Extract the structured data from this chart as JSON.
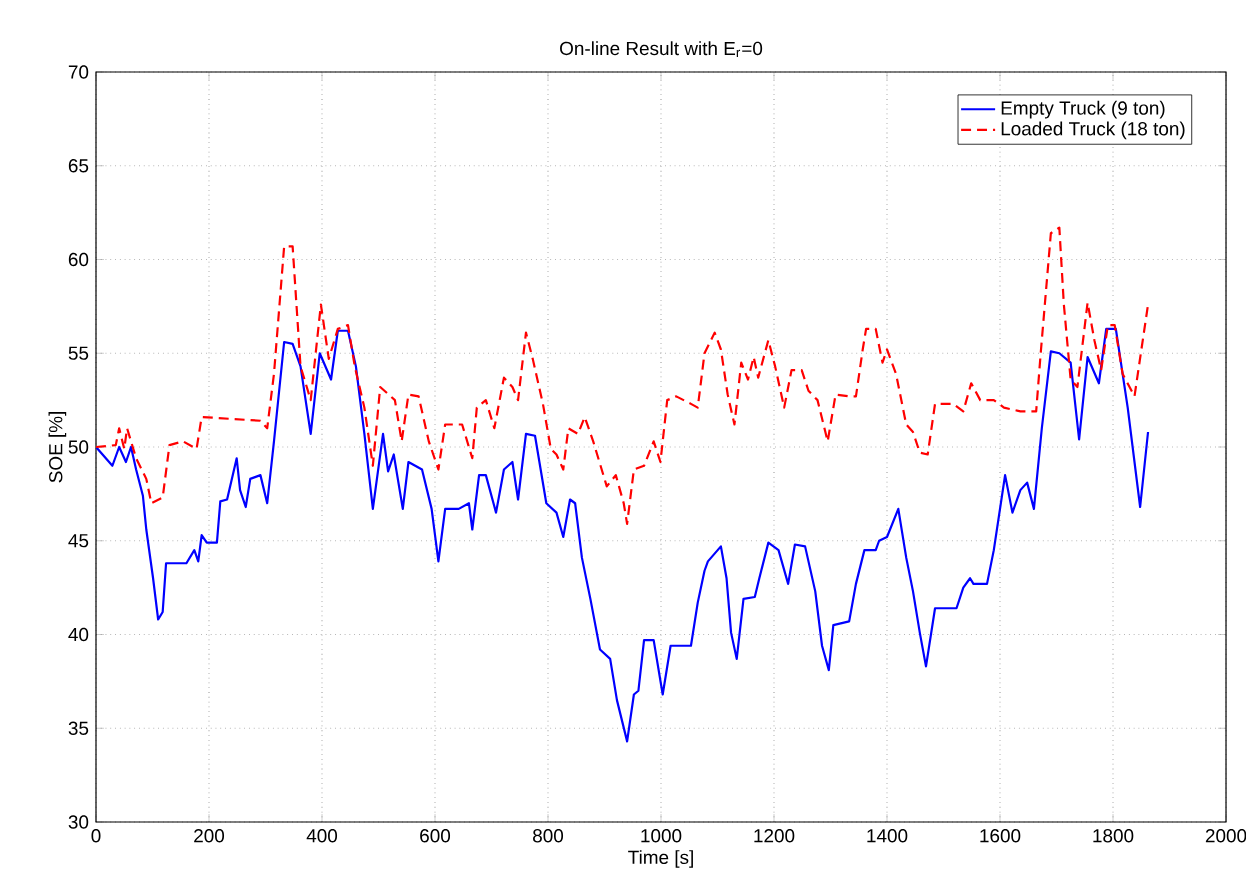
{
  "chart_data": {
    "type": "line",
    "title": "On-line Result with E$_{r}$=0",
    "xlabel": "Time [s]",
    "ylabel": "SOE [%]",
    "xlim": [
      0,
      2000
    ],
    "ylim": [
      30,
      70
    ],
    "xticks": [
      0,
      200,
      400,
      600,
      800,
      1000,
      1200,
      1400,
      1600,
      1800,
      2000
    ],
    "yticks": [
      30,
      35,
      40,
      45,
      50,
      55,
      60,
      65,
      70
    ],
    "grid": true,
    "legend": "top right",
    "series": [
      {
        "name": "Empty Truck (9 ton)",
        "color": "#0000ff",
        "line_style": "solid",
        "x": [
          0,
          29,
          41,
          53,
          62,
          71,
          83,
          89,
          101,
          110,
          118,
          124,
          160,
          174,
          181,
          187,
          196,
          214,
          220,
          232,
          249,
          255,
          265,
          273,
          291,
          303,
          315,
          333,
          348,
          362,
          380,
          396,
          416,
          428,
          446,
          460,
          475,
          490,
          508,
          517,
          527,
          543,
          553,
          577,
          594,
          606,
          618,
          642,
          660,
          666,
          678,
          690,
          708,
          722,
          737,
          747,
          761,
          777,
          797,
          815,
          827,
          839,
          848,
          860,
          875,
          892,
          910,
          922,
          940,
          952,
          960,
          970,
          987,
          1003,
          1017,
          1053,
          1065,
          1077,
          1083,
          1106,
          1116,
          1124,
          1134,
          1146,
          1166,
          1174,
          1190,
          1208,
          1225,
          1237,
          1255,
          1273,
          1285,
          1297,
          1305,
          1333,
          1345,
          1360,
          1380,
          1386,
          1400,
          1420,
          1434,
          1446,
          1458,
          1469,
          1485,
          1523,
          1535,
          1547,
          1553,
          1577,
          1589,
          1609,
          1622,
          1636,
          1648,
          1660,
          1674,
          1690,
          1705,
          1725,
          1740,
          1755,
          1775,
          1788,
          1805,
          1826,
          1848,
          1862
        ],
        "values": [
          50,
          49,
          50,
          49.2,
          50,
          48.8,
          47.4,
          45.6,
          43,
          40.8,
          41.2,
          43.8,
          43.8,
          44.5,
          43.9,
          45.3,
          44.9,
          44.9,
          47.1,
          47.2,
          49.4,
          47.7,
          46.8,
          48.3,
          48.5,
          47,
          50.3,
          55.6,
          55.5,
          54.3,
          50.7,
          55,
          53.6,
          56.2,
          56.2,
          54.3,
          50.7,
          46.7,
          50.7,
          48.7,
          49.6,
          46.7,
          49.2,
          48.8,
          46.7,
          43.9,
          46.7,
          46.7,
          47,
          45.6,
          48.5,
          48.5,
          46.5,
          48.8,
          49.2,
          47.2,
          50.7,
          50.6,
          47,
          46.5,
          45.2,
          47.2,
          47,
          44.1,
          41.9,
          39.2,
          38.7,
          36.5,
          34.3,
          36.8,
          37,
          39.7,
          39.7,
          36.8,
          39.4,
          39.4,
          41.7,
          43.4,
          43.9,
          44.7,
          43,
          40.1,
          38.7,
          41.9,
          42,
          43,
          44.9,
          44.5,
          42.7,
          44.8,
          44.7,
          42.3,
          39.4,
          38.1,
          40.5,
          40.7,
          42.7,
          44.5,
          44.5,
          45,
          45.2,
          46.7,
          44.1,
          42.3,
          40.1,
          38.3,
          41.4,
          41.4,
          42.5,
          43,
          42.7,
          42.7,
          44.5,
          48.5,
          46.5,
          47.7,
          48.1,
          46.7,
          51,
          55.1,
          55,
          54.5,
          50.4,
          54.8,
          53.4,
          56.3,
          56.3,
          52.1,
          46.8,
          50.8
        ]
      },
      {
        "name": "Loaded Truck (18 ton)",
        "color": "#ff0000",
        "line_style": "dashed",
        "x": [
          0,
          35,
          41,
          50,
          55,
          71,
          89,
          98,
          118,
          130,
          154,
          178,
          187,
          291,
          303,
          315,
          333,
          348,
          362,
          380,
          398,
          412,
          428,
          446,
          458,
          475,
          490,
          503,
          529,
          541,
          553,
          571,
          589,
          606,
          618,
          648,
          666,
          674,
          690,
          705,
          722,
          737,
          747,
          761,
          773,
          791,
          805,
          815,
          827,
          836,
          853,
          865,
          880,
          904,
          920,
          934,
          940,
          952,
          970,
          987,
          999,
          1011,
          1027,
          1053,
          1065,
          1077,
          1095,
          1106,
          1118,
          1130,
          1142,
          1154,
          1164,
          1172,
          1190,
          1202,
          1218,
          1231,
          1249,
          1261,
          1277,
          1295,
          1309,
          1333,
          1345,
          1357,
          1363,
          1380,
          1392,
          1400,
          1416,
          1434,
          1446,
          1458,
          1472,
          1485,
          1517,
          1535,
          1549,
          1565,
          1589,
          1607,
          1636,
          1664,
          1672,
          1690,
          1705,
          1713,
          1725,
          1737,
          1755,
          1767,
          1779,
          1791,
          1803,
          1817,
          1838,
          1862
        ],
        "values": [
          50,
          50.1,
          51,
          49.9,
          51,
          49.4,
          48.3,
          47,
          47.3,
          50.1,
          50.3,
          49.9,
          51.6,
          51.4,
          51,
          53.9,
          60.7,
          60.7,
          54.3,
          52.5,
          57.6,
          54.7,
          56.3,
          56.5,
          54.3,
          52.1,
          49,
          53.2,
          52.5,
          50.3,
          52.8,
          52.7,
          50.3,
          48.8,
          51.2,
          51.2,
          49.4,
          52.1,
          52.5,
          51,
          53.7,
          53.2,
          52.5,
          56.1,
          54.7,
          52.3,
          49.9,
          49.6,
          48.8,
          51,
          50.7,
          51.6,
          50.3,
          47.9,
          48.5,
          47,
          45.9,
          48.8,
          49,
          50.3,
          49.2,
          52.5,
          52.7,
          52.3,
          52.1,
          55,
          56.1,
          55.2,
          52.8,
          51.2,
          54.5,
          53.6,
          54.8,
          53.7,
          55.7,
          54.3,
          52.1,
          54.1,
          54.1,
          53,
          52.5,
          50.3,
          52.8,
          52.7,
          52.7,
          55.2,
          56.3,
          56.3,
          54.5,
          55.2,
          53.9,
          51.2,
          50.8,
          49.7,
          49.6,
          52.3,
          52.3,
          51.9,
          53.4,
          52.5,
          52.5,
          52.1,
          51.9,
          51.9,
          55,
          61.4,
          61.7,
          57.6,
          53.6,
          53.2,
          57.7,
          55.7,
          54.1,
          56.5,
          56.5,
          53.9,
          52.7,
          57.6
        ]
      }
    ]
  }
}
